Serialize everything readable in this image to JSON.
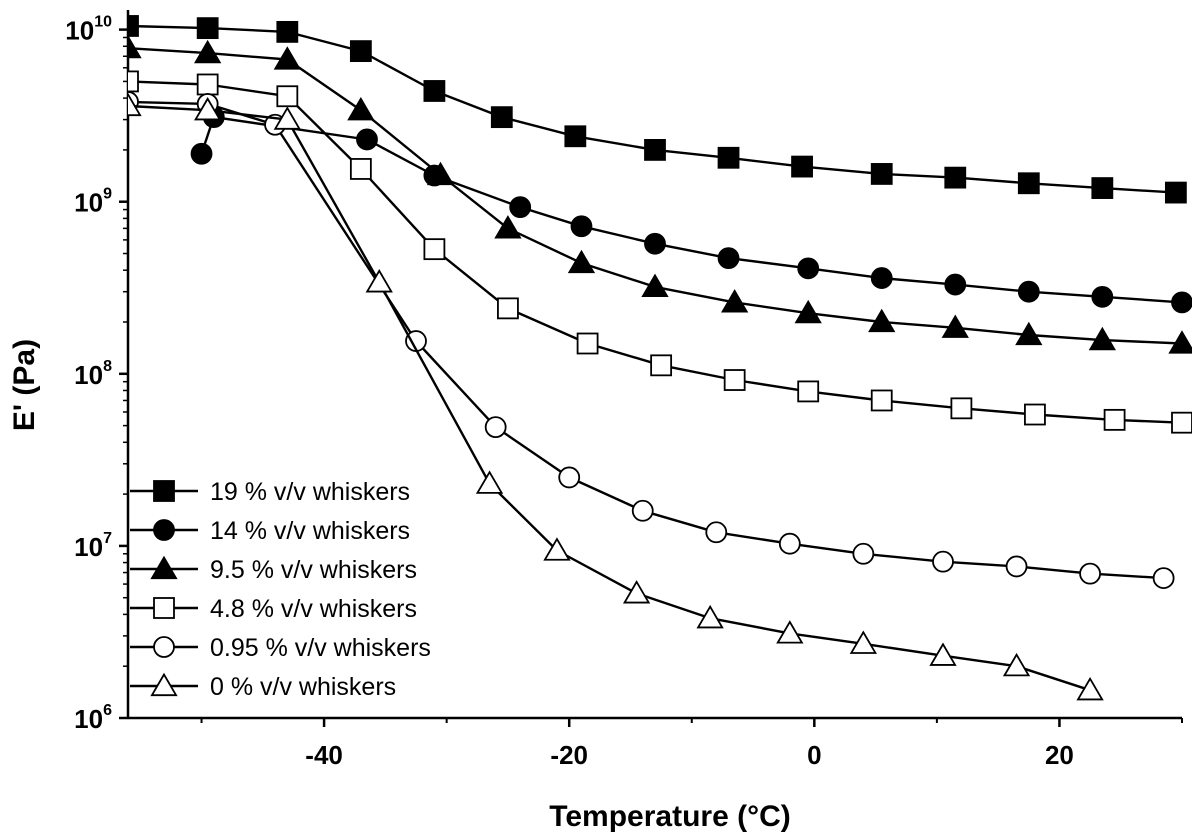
{
  "chart_data": {
    "type": "line",
    "xlabel": "Temperature (°C)",
    "ylabel": "E' (Pa)",
    "xlim": [
      -56,
      30
    ],
    "ylim": [
      1000000,
      13000000000
    ],
    "yscale": "log",
    "xticks": [
      -40,
      -20,
      0,
      20
    ],
    "xtick_labels": [
      "-40",
      "-20",
      "0",
      "20"
    ],
    "yticks": [
      {
        "value": 10000000000,
        "base": "10",
        "exp": "10"
      },
      {
        "value": 1000000000,
        "base": "10",
        "exp": "9"
      },
      {
        "value": 100000000,
        "base": "10",
        "exp": "8"
      },
      {
        "value": 10000000,
        "base": "10",
        "exp": "7"
      },
      {
        "value": 1000000,
        "base": "10",
        "exp": "6"
      }
    ],
    "legend_position": "bottom-left",
    "series": [
      {
        "name": "19 % v/v whiskers",
        "marker": "square-filled",
        "x": [
          -56,
          -49.5,
          -43,
          -37,
          -31,
          -25.5,
          -19.5,
          -13,
          -7,
          -1,
          5.5,
          11.5,
          17.5,
          23.5,
          29.5
        ],
        "y": [
          10500000000,
          10200000000,
          9700000000,
          7500000000,
          4400000000,
          3100000000,
          2400000000,
          2000000000,
          1800000000,
          1600000000,
          1450000000,
          1380000000,
          1280000000,
          1200000000,
          1130000000
        ]
      },
      {
        "name": "14 % v/v whiskers",
        "marker": "circle-filled",
        "x": [
          -50,
          -49,
          -36.5,
          -31,
          -24,
          -19,
          -13,
          -7,
          -0.5,
          5.5,
          11.5,
          17.5,
          23.5,
          30
        ],
        "y": [
          1900000000,
          3100000000,
          2300000000,
          1420000000,
          930000000,
          720000000,
          570000000,
          470000000,
          410000000,
          360000000,
          330000000,
          300000000,
          280000000,
          260000000
        ]
      },
      {
        "name": "9.5 % v/v whiskers",
        "marker": "triangle-filled",
        "x": [
          -56,
          -49.5,
          -43,
          -37,
          -30.5,
          -25,
          -19,
          -13,
          -6.5,
          -0.5,
          5.5,
          11.5,
          17.5,
          23.5,
          30
        ],
        "y": [
          7800000000,
          7300000000,
          6700000000,
          3400000000,
          1430000000,
          700000000,
          440000000,
          320000000,
          260000000,
          225000000,
          200000000,
          185000000,
          168000000,
          157000000,
          150000000
        ]
      },
      {
        "name": "4.8 % v/v whiskers",
        "marker": "square-open",
        "x": [
          -56,
          -49.5,
          -43,
          -37,
          -31,
          -25,
          -18.5,
          -12.5,
          -6.5,
          -0.5,
          5.5,
          12,
          18,
          24.5,
          30
        ],
        "y": [
          5000000000,
          4800000000,
          4100000000,
          1550000000,
          530000000,
          240000000,
          150000000,
          112000000,
          92000000,
          79000000,
          70000000,
          63000000,
          58000000,
          54000000,
          52000000
        ]
      },
      {
        "name": "0.95 % v/v whiskers",
        "marker": "circle-open",
        "x": [
          -56,
          -49.5,
          -44,
          -32.5,
          -26,
          -20,
          -14,
          -8,
          -2,
          4,
          10.5,
          16.5,
          22.5,
          28.5
        ],
        "y": [
          3800000000,
          3700000000,
          2800000000,
          155000000,
          49000000,
          25000000,
          16000000,
          12000000,
          10300000,
          9000000,
          8100000,
          7600000,
          6900000,
          6500000
        ]
      },
      {
        "name": "0 % v/v whiskers",
        "marker": "triangle-open",
        "x": [
          -56,
          -49.5,
          -43,
          -35.5,
          -26.5,
          -21,
          -14.5,
          -8.5,
          -2,
          4,
          10.5,
          16.5,
          22.5
        ],
        "y": [
          3600000000,
          3400000000,
          3000000000,
          340000000,
          23000000,
          9400000,
          5300000,
          3800000,
          3100000,
          2700000,
          2300000,
          2000000,
          1450000
        ]
      }
    ]
  }
}
